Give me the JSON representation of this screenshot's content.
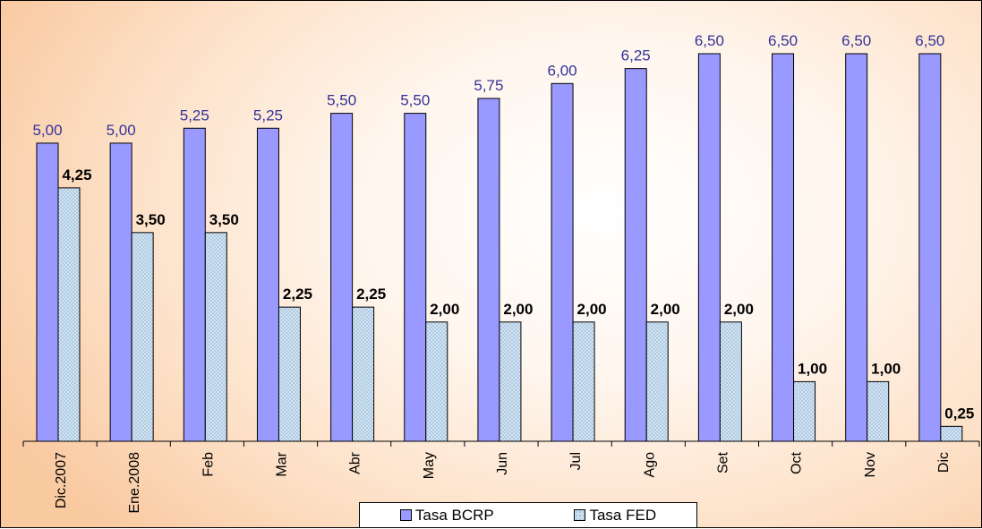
{
  "chart_data": {
    "type": "bar",
    "categories": [
      "Dic.2007",
      "Ene.2008",
      "Feb",
      "Mar",
      "Abr",
      "May",
      "Jun",
      "Jul",
      "Ago",
      "Set",
      "Oct",
      "Nov",
      "Dic"
    ],
    "series": [
      {
        "name": "Tasa BCRP",
        "values": [
          5.0,
          5.0,
          5.25,
          5.25,
          5.5,
          5.5,
          5.75,
          6.0,
          6.25,
          6.5,
          6.5,
          6.5,
          6.5
        ],
        "labels": [
          "5,00",
          "5,00",
          "5,25",
          "5,25",
          "5,50",
          "5,50",
          "5,75",
          "6,00",
          "6,25",
          "6,50",
          "6,50",
          "6,50",
          "6,50"
        ],
        "color": "#9999ff",
        "label_color": "#333399"
      },
      {
        "name": "Tasa FED",
        "values": [
          4.25,
          3.5,
          3.5,
          2.25,
          2.25,
          2.0,
          2.0,
          2.0,
          2.0,
          2.0,
          1.0,
          1.0,
          0.25
        ],
        "labels": [
          "4,25",
          "3,50",
          "3,50",
          "2,25",
          "2,25",
          "2,00",
          "2,00",
          "2,00",
          "2,00",
          "2,00",
          "1,00",
          "1,00",
          "0,25"
        ],
        "color": "#c7e1f1",
        "label_color": "#000000"
      }
    ],
    "ylim": [
      0,
      6.5
    ],
    "grid": false,
    "legend_position": "bottom"
  }
}
